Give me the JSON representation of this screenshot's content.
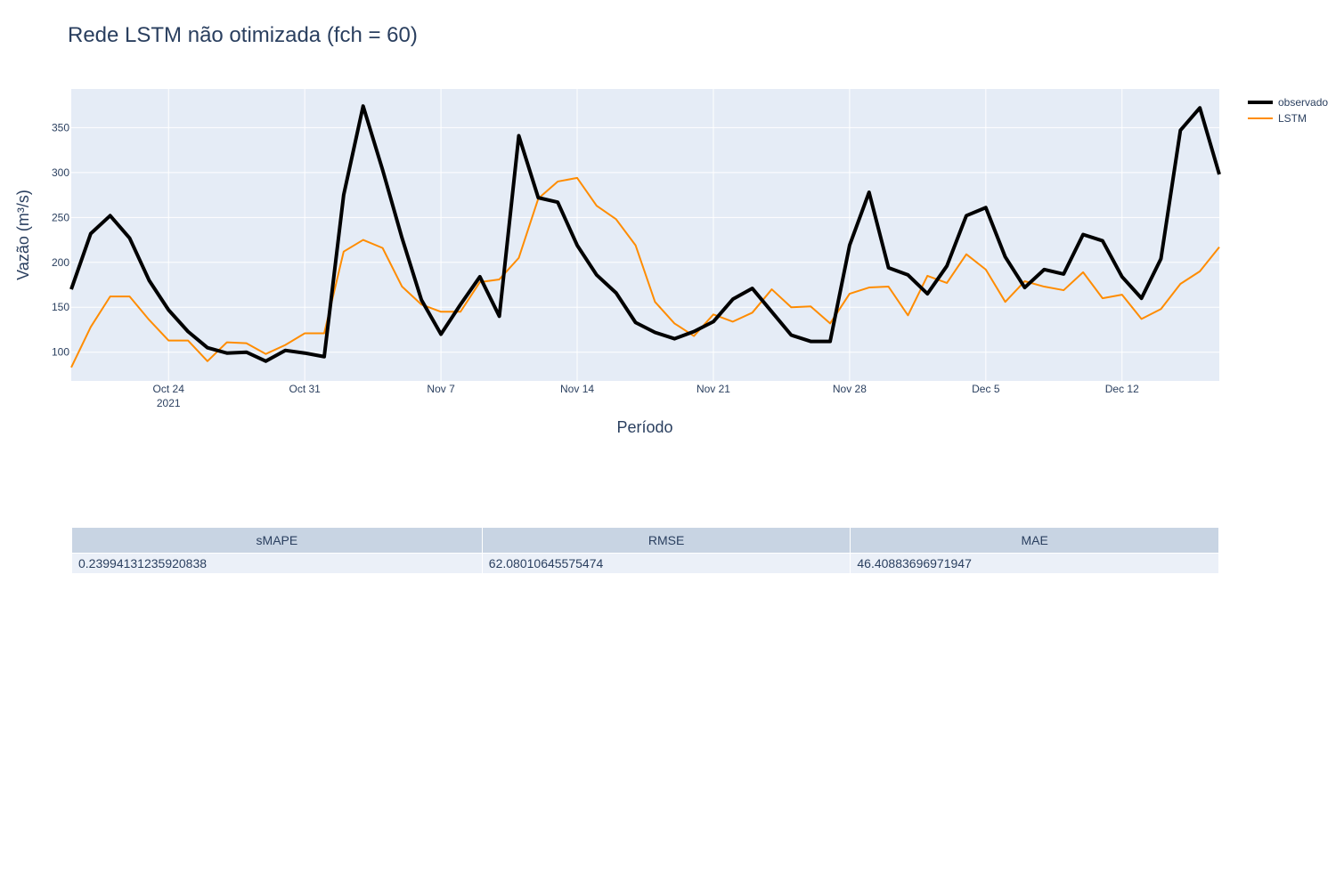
{
  "chart_data": {
    "type": "line",
    "title": "Rede LSTM não otimizada (fch = 60)",
    "xlabel": "Período",
    "ylabel": "Vazão (m³/s)",
    "start_date": "2021-10-19",
    "end_date": "2021-12-17",
    "xlim": [
      "2021-10-19",
      "2021-12-17"
    ],
    "ylim": [
      68,
      393
    ],
    "x_ticks": [
      {
        "date": "2021-10-24",
        "label": "Oct 24",
        "sublabel": "2021"
      },
      {
        "date": "2021-10-31",
        "label": "Oct 31"
      },
      {
        "date": "2021-11-07",
        "label": "Nov 7"
      },
      {
        "date": "2021-11-14",
        "label": "Nov 14"
      },
      {
        "date": "2021-11-21",
        "label": "Nov 21"
      },
      {
        "date": "2021-11-28",
        "label": "Nov 28"
      },
      {
        "date": "2021-12-05",
        "label": "Dec 5"
      },
      {
        "date": "2021-12-12",
        "label": "Dec 12"
      }
    ],
    "y_ticks": [
      100,
      150,
      200,
      250,
      300,
      350
    ],
    "grid": true,
    "legend_position": "top-right",
    "series": [
      {
        "name": "observado",
        "color": "#000000",
        "values": [
          170,
          232,
          252,
          227,
          180,
          147,
          123,
          105,
          99,
          100,
          90,
          102,
          99,
          95,
          275,
          374,
          303,
          227,
          158,
          120,
          153,
          184,
          140,
          341,
          272,
          267,
          219,
          186,
          166,
          133,
          122,
          115,
          123,
          134,
          159,
          171,
          145,
          119,
          112,
          112,
          219,
          278,
          194,
          186,
          165,
          196,
          252,
          261,
          206,
          172,
          192,
          187,
          231,
          224,
          184,
          160,
          204,
          347,
          372,
          298
        ]
      },
      {
        "name": "LSTM",
        "color": "#ff8c00",
        "values": [
          83,
          128,
          162,
          162,
          136,
          113,
          113,
          90,
          111,
          110,
          98,
          108,
          121,
          121,
          212,
          225,
          216,
          173,
          153,
          145,
          145,
          178,
          181,
          205,
          271,
          290,
          294,
          263,
          248,
          219,
          156,
          132,
          118,
          142,
          134,
          144,
          170,
          150,
          151,
          132,
          165,
          172,
          173,
          141,
          185,
          177,
          209,
          192,
          156,
          179,
          173,
          169,
          189,
          160,
          164,
          137,
          148,
          176,
          190,
          217
        ]
      }
    ]
  },
  "table": {
    "headers": [
      "sMAPE",
      "RMSE",
      "MAE"
    ],
    "rows": [
      [
        "0.23994131235920838",
        "62.08010645575474",
        "46.40883696971947"
      ]
    ]
  }
}
